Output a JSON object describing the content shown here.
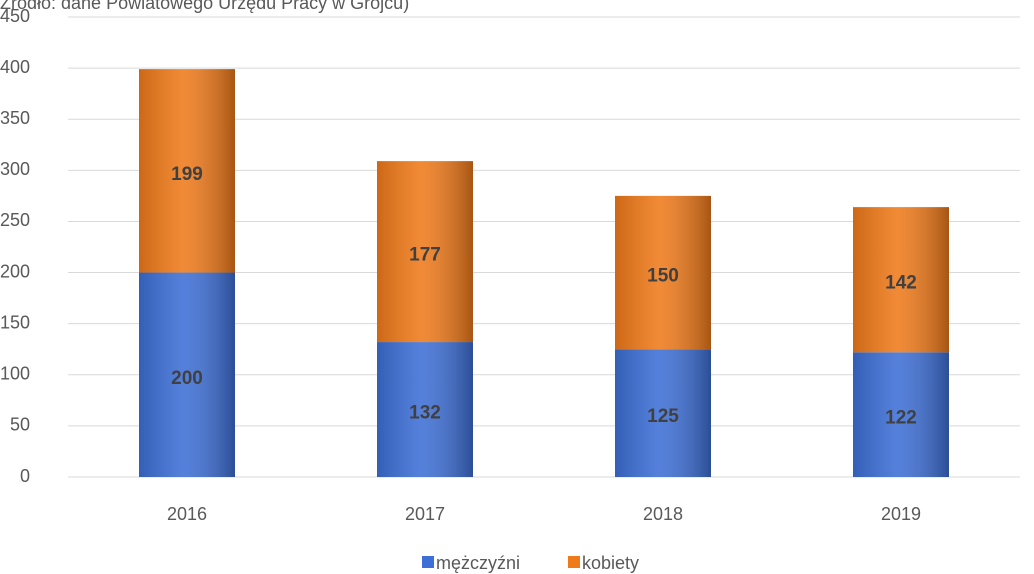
{
  "chart_data": {
    "type": "stacked_bar",
    "subtitle": "Źródło: dane Powiatowego Urzędu Pracy w Grójcu)",
    "categories": [
      "2016",
      "2017",
      "2018",
      "2019"
    ],
    "series": [
      {
        "name": "mężczyźni",
        "color": "#3d6fd6",
        "values": [
          200,
          132,
          125,
          122
        ]
      },
      {
        "name": "kobiety",
        "color": "#ef7a1a",
        "values": [
          199,
          177,
          150,
          142
        ]
      }
    ],
    "ylim": [
      0,
      450
    ],
    "yticks": [
      0,
      50,
      100,
      150,
      200,
      250,
      300,
      350,
      400,
      450
    ],
    "grid": true,
    "legend": "bottom"
  }
}
